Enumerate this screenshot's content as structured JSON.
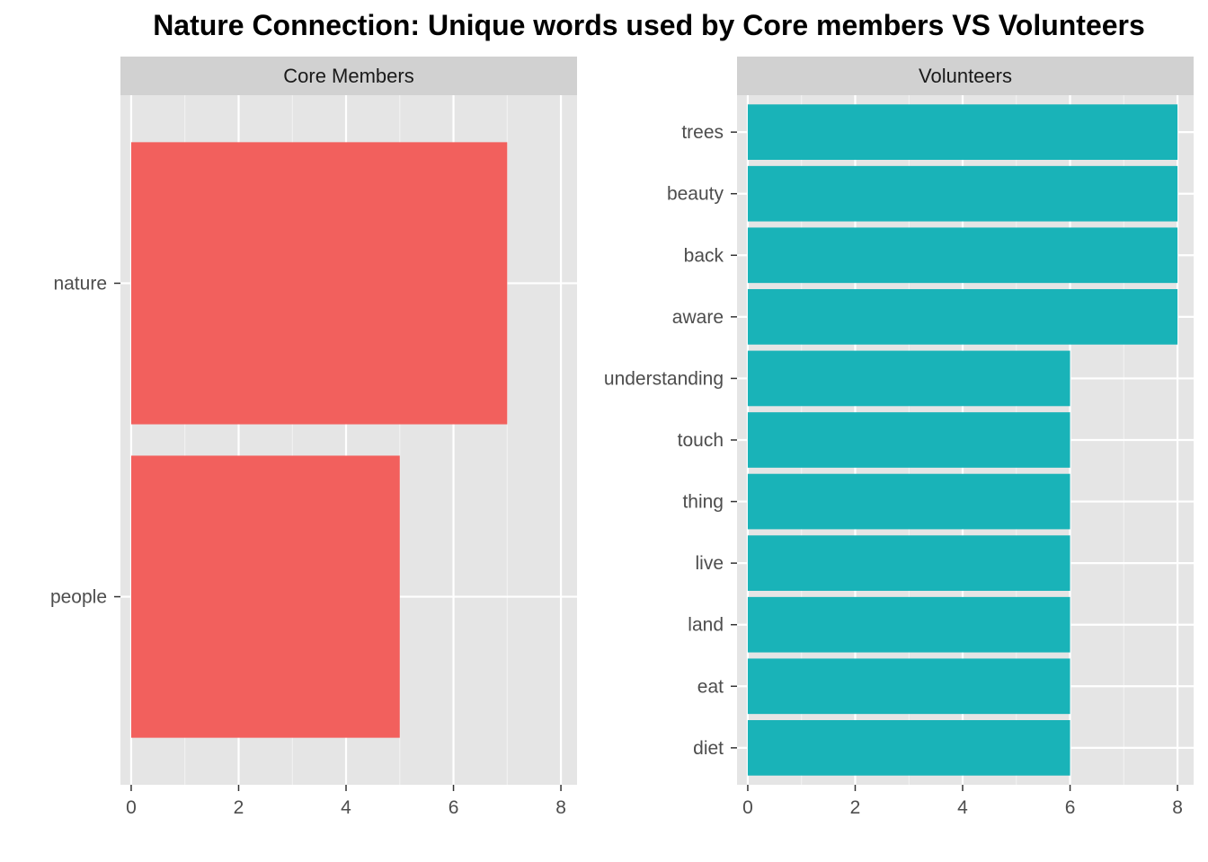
{
  "chart_data": {
    "type": "bar",
    "orientation": "horizontal",
    "title": "Nature Connection: Unique words used by Core members VS Volunteers",
    "xlabel": "",
    "ylabel": "",
    "grid": true,
    "legend": "none",
    "facets": [
      {
        "strip": "Core Members",
        "color": "#F2605D",
        "xlim": [
          0,
          8.3
        ],
        "xticks": [
          0,
          2,
          4,
          6,
          8
        ],
        "categories": [
          "nature",
          "people"
        ],
        "values": [
          7,
          5
        ]
      },
      {
        "strip": "Volunteers",
        "color": "#19B3B8",
        "xlim": [
          0,
          8.3
        ],
        "xticks": [
          0,
          2,
          4,
          6,
          8
        ],
        "categories": [
          "trees",
          "beauty",
          "back",
          "aware",
          "understanding",
          "touch",
          "thing",
          "live",
          "land",
          "eat",
          "diet"
        ],
        "values": [
          8,
          8,
          8,
          8,
          6,
          6,
          6,
          6,
          6,
          6,
          6
        ]
      }
    ]
  },
  "colors": {
    "panel_background": "#E5E5E5",
    "strip_background": "#D1D1D1",
    "grid_major": "#FFFFFF",
    "grid_minor": "#F2F2F2"
  }
}
